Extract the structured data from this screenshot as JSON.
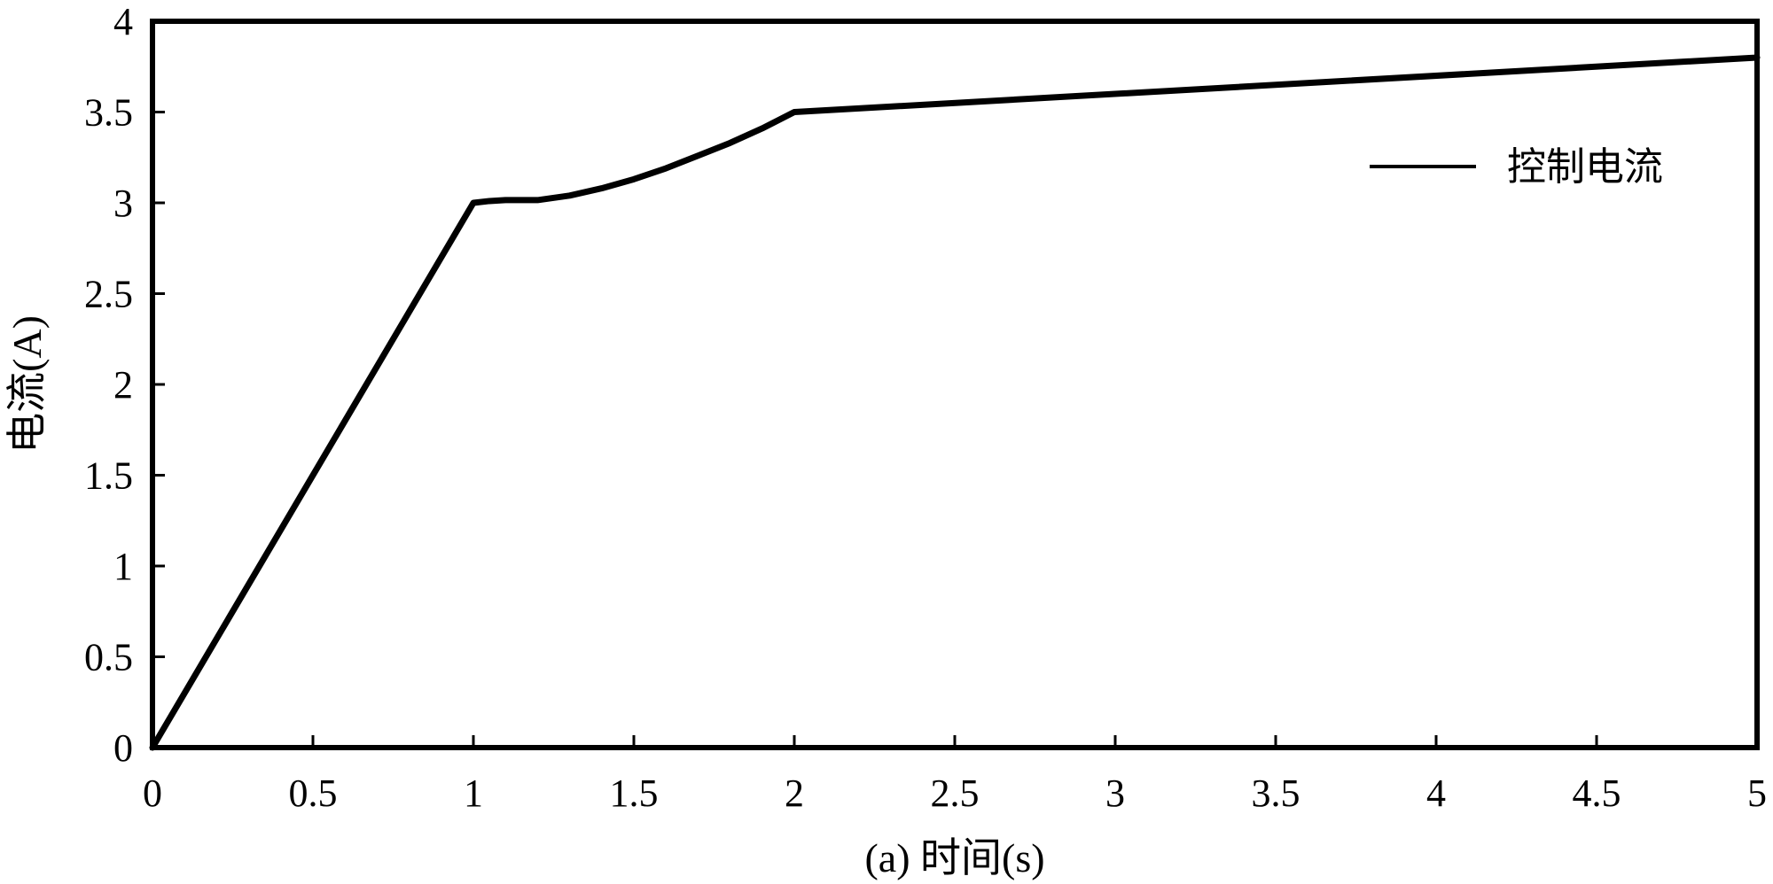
{
  "chart_data": {
    "type": "line",
    "title": "",
    "xlabel": "(a) 时间(s)",
    "ylabel": "电流(A)",
    "xlim": [
      0,
      5
    ],
    "ylim": [
      0,
      4
    ],
    "xticks": [
      0,
      0.5,
      1,
      1.5,
      2,
      2.5,
      3,
      3.5,
      4,
      4.5,
      5
    ],
    "yticks": [
      0,
      0.5,
      1,
      1.5,
      2,
      2.5,
      3,
      3.5,
      4
    ],
    "xtick_labels": [
      "0",
      "0.5",
      "1",
      "1.5",
      "2",
      "2.5",
      "3",
      "3.5",
      "4",
      "4.5",
      "5"
    ],
    "ytick_labels": [
      "0",
      "0.5",
      "1",
      "1.5",
      "2",
      "2.5",
      "3",
      "3.5",
      "4"
    ],
    "grid": false,
    "legend_position": "top-right",
    "series": [
      {
        "name": "控制电流",
        "color": "#000000",
        "x": [
          0,
          1.0,
          1.05,
          1.1,
          1.15,
          1.2,
          1.3,
          1.4,
          1.5,
          1.6,
          1.7,
          1.8,
          1.9,
          2.0,
          5.0
        ],
        "y": [
          0,
          3.0,
          3.01,
          3.015,
          3.015,
          3.015,
          3.04,
          3.08,
          3.13,
          3.19,
          3.26,
          3.33,
          3.41,
          3.5,
          3.8
        ]
      }
    ]
  }
}
